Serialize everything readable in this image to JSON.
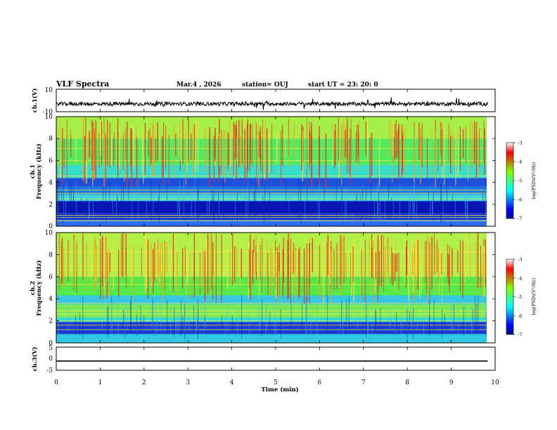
{
  "header": {
    "title": "VLF Spectra",
    "date": "Mar.4 , 2026",
    "station": "station= OUJ",
    "start": "start  UT  =   23: 20: 0"
  },
  "chart_data": {
    "type": "heatmap",
    "x": {
      "label": "Time (min)",
      "range": [
        0,
        10
      ],
      "ticks": [
        "0",
        "1",
        "2",
        "3",
        "4",
        "5",
        "6",
        "7",
        "8",
        "9",
        "10"
      ]
    },
    "panels": [
      {
        "kind": "waveform",
        "label": "ch.1(V)",
        "ylim": [
          -10,
          10
        ],
        "yticks": [
          "10",
          "-10"
        ],
        "baseline": -3
      },
      {
        "kind": "spectrogram",
        "label_line1": "ch.1",
        "label_line2": "Frequency (kHz)",
        "ylim": [
          0,
          10
        ],
        "yticks": [
          "0",
          "2",
          "4",
          "6",
          "8",
          "10"
        ],
        "bands": [
          {
            "from": 0,
            "to": 0.6,
            "color": "#2b6cf0"
          },
          {
            "from": 0.6,
            "to": 1.2,
            "color": "#1530c8"
          },
          {
            "from": 1.2,
            "to": 2.3,
            "color": "#0a14b4"
          },
          {
            "from": 2.3,
            "to": 2.9,
            "color": "#3cd6d8"
          },
          {
            "from": 2.9,
            "to": 3.6,
            "color": "#1c78e6"
          },
          {
            "from": 3.6,
            "to": 4.4,
            "color": "#1c50dc"
          },
          {
            "from": 4.4,
            "to": 5.6,
            "color": "#38dcc8"
          },
          {
            "from": 5.6,
            "to": 8,
            "color": "#52ea60"
          },
          {
            "from": 8,
            "to": 10,
            "color": "#a6ee48"
          }
        ],
        "lines_khz": [
          0.5,
          0.8,
          1.0,
          2.5,
          3.0,
          3.3,
          4.6,
          6.0,
          7.1
        ]
      },
      {
        "kind": "spectrogram",
        "label_line1": "ch.2",
        "label_line2": "Frequency (kHz)",
        "ylim": [
          0,
          10
        ],
        "yticks": [
          "0",
          "2",
          "4",
          "6",
          "8",
          "10"
        ],
        "bands": [
          {
            "from": 0,
            "to": 0.8,
            "color": "#30c8e0"
          },
          {
            "from": 0.8,
            "to": 1.9,
            "color": "#1a3ad0"
          },
          {
            "from": 1.9,
            "to": 2.3,
            "color": "#36d8c8"
          },
          {
            "from": 2.3,
            "to": 3.5,
            "color": "#7ae858"
          },
          {
            "from": 3.5,
            "to": 4.3,
            "color": "#36c8e0"
          },
          {
            "from": 4.3,
            "to": 6,
            "color": "#56e848"
          },
          {
            "from": 6,
            "to": 10,
            "color": "#b4ee48"
          }
        ],
        "lines_khz": [
          1.2,
          1.6,
          2.0,
          2.6,
          2.9,
          3.6,
          5.3,
          6.6,
          7.0,
          8.3
        ]
      },
      {
        "kind": "waveform",
        "label": "ch.3(V)",
        "ylim": [
          -5,
          5
        ],
        "yticks": [
          "5",
          "0",
          "-5"
        ],
        "baseline": -1
      }
    ],
    "colorbars": [
      {
        "label": "log(PSD)(V²/Hz)",
        "range": [
          -7,
          -3
        ],
        "ticks": [
          "-3",
          "-4",
          "-5",
          "-6",
          "-7"
        ],
        "colormap": "jet"
      },
      {
        "label": "log(PSD)(V²/Hz)",
        "range": [
          -7,
          -3
        ],
        "ticks": [
          "-3",
          "-4",
          "-5",
          "-6",
          "-7"
        ],
        "colormap": "jet"
      }
    ]
  }
}
